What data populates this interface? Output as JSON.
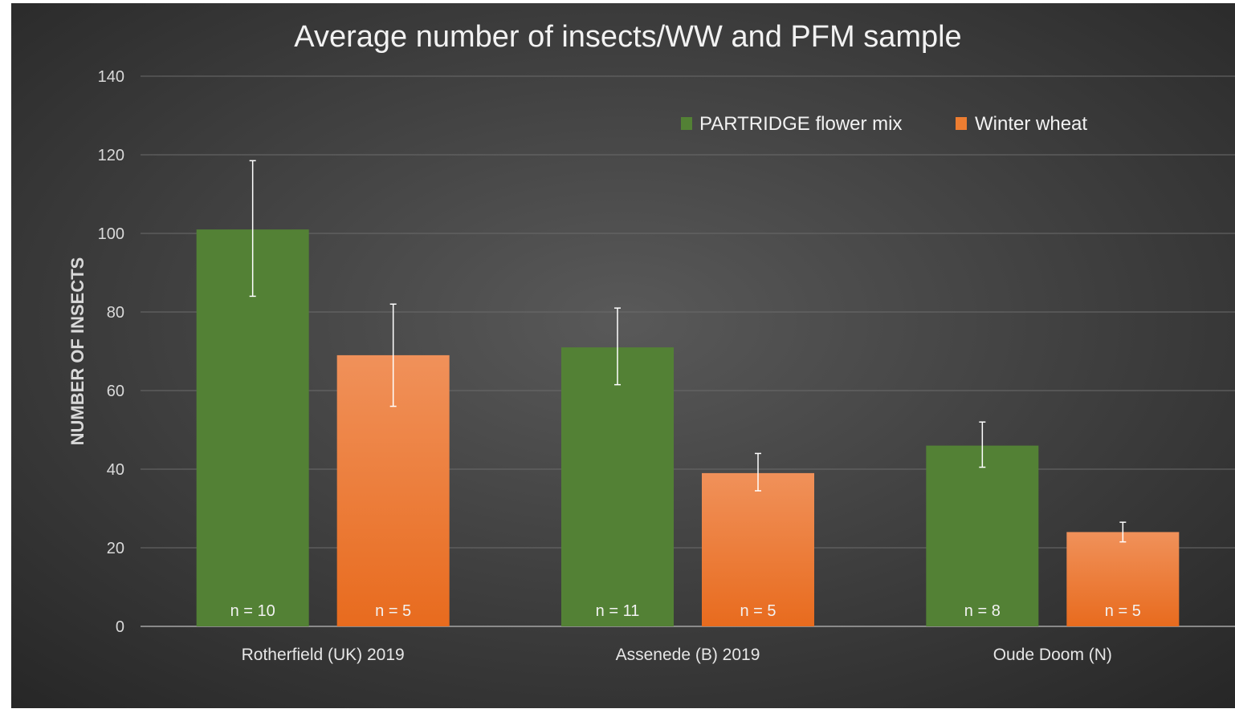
{
  "chart_data": {
    "type": "bar",
    "title": "Average number of insects/WW and PFM sample",
    "xlabel": "",
    "ylabel": "NUMBER OF INSECTS",
    "ylim": [
      0,
      140
    ],
    "yticks": [
      0,
      20,
      40,
      60,
      80,
      100,
      120,
      140
    ],
    "categories": [
      "Rotherfield (UK) 2019",
      "Assenede (B) 2019",
      "Oude Doom (N)"
    ],
    "grid": true,
    "legend_position": "top-right",
    "series": [
      {
        "name": "PARTRIDGE flower mix",
        "color": "#538135",
        "values": [
          101,
          71,
          46
        ],
        "error_low": [
          84,
          61.5,
          40.5
        ],
        "error_high": [
          118.5,
          81,
          52
        ],
        "labels": [
          "n = 10",
          "n = 11",
          "n = 8"
        ]
      },
      {
        "name": "Winter wheat",
        "color": "#ED7D31",
        "values": [
          69,
          39,
          24
        ],
        "error_low": [
          56,
          34.5,
          21.5
        ],
        "error_high": [
          82,
          44,
          26.5
        ],
        "labels": [
          "n = 5",
          "n = 5",
          "n = 5"
        ]
      }
    ]
  }
}
